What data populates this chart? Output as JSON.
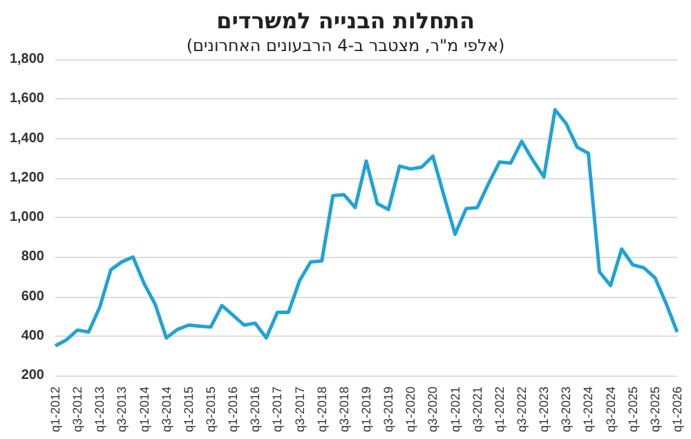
{
  "chart_data": {
    "type": "line",
    "title": "התחלות הבנייה למשרדים",
    "subtitle": "(אלפי מ\"ר, מצטבר ב-4 הרבעונים האחרונים)",
    "categories": [
      "q1-2012",
      null,
      "q3-2012",
      null,
      "q1-2013",
      null,
      "q3-2013",
      null,
      "q1-2014",
      null,
      "q3-2014",
      null,
      "q1-2015",
      null,
      "q3-2015",
      null,
      "q1-2016",
      null,
      "q3-2016",
      null,
      "q1-2017",
      null,
      "q3-2017",
      null,
      "q1-2018",
      null,
      "q3-2018",
      null,
      "q1-2019",
      null,
      "q3-2019",
      null,
      "q1-2020",
      null,
      "q3-2020",
      null,
      "q1-2021",
      null,
      "q3-2021",
      null,
      "q1-2022",
      null,
      "q3-2022",
      null,
      "q1-2023",
      null,
      "q3-2023",
      null,
      "q1-2024",
      null,
      "q3-2024",
      null,
      "q1-2025",
      null,
      "q3-2025",
      null,
      "q1-2026"
    ],
    "series": [
      {
        "color": "#1fa3d6",
        "values": [
          350,
          380,
          430,
          420,
          545,
          735,
          775,
          800,
          665,
          560,
          390,
          433,
          455,
          450,
          445,
          554,
          505,
          455,
          465,
          390,
          520,
          520,
          680,
          775,
          780,
          1110,
          1115,
          1050,
          1285,
          1070,
          1040,
          1260,
          1245,
          1255,
          1310,
          1110,
          915,
          1045,
          1050,
          1170,
          1280,
          1275,
          1385,
          1290,
          1205,
          1545,
          1475,
          1355,
          1325,
          725,
          655,
          840,
          760,
          745,
          695,
          565,
          420
        ]
      }
    ],
    "ylim": [
      200,
      1800
    ],
    "yticks": [
      200,
      400,
      600,
      800,
      {
        "value": 1000,
        "label": "1,000"
      },
      {
        "value": 1200,
        "label": "1,200"
      },
      {
        "value": 1400,
        "label": "1,400"
      },
      {
        "value": 1600,
        "label": "1,600"
      },
      {
        "value": 1800,
        "label": "1,800"
      }
    ],
    "grid": "y",
    "marker": "none",
    "line_style": "solid"
  }
}
